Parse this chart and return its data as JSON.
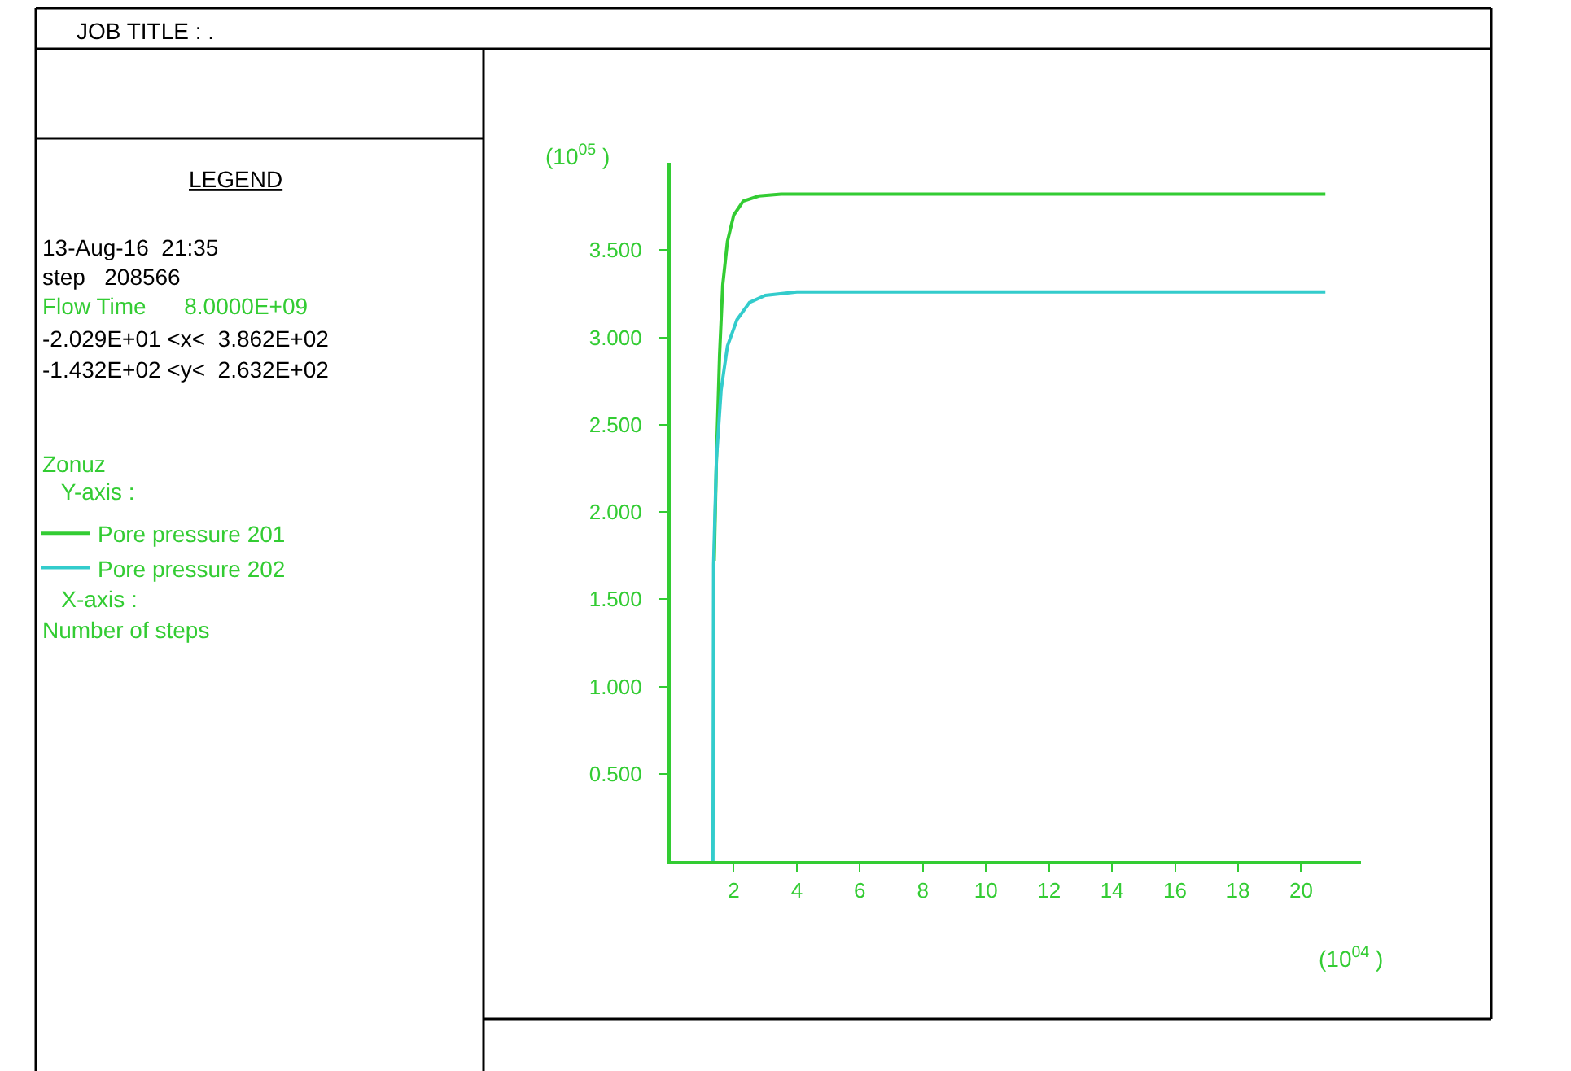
{
  "chart_data": {
    "type": "line",
    "title": "JOB TITLE : .",
    "xlabel": "(10$^{04}$ )",
    "ylabel": "(10$^{05}$ )",
    "annotations": [
      "LEGEND",
      "13-Aug-16  21:35",
      "step   208566",
      "Flow Time      8.0000E+09",
      "-2.029E+01 <x<  3.862E+02",
      "-1.432E+02 <y<  2.632E+02",
      "Zonuz",
      "   Y-axis :",
      "   X-axis :",
      "Number of steps"
    ],
    "series": [
      {
        "name": "Pore pressure 201",
        "color": "#33cc33",
        "x": [
          1.38,
          1.45,
          1.55,
          1.65,
          1.8,
          2.0,
          2.3,
          2.8,
          3.5,
          20.77
        ],
        "values": [
          1.72,
          2.3,
          2.9,
          3.3,
          3.55,
          3.7,
          3.78,
          3.81,
          3.82,
          3.82
        ]
      },
      {
        "name": "Pore pressure 202",
        "color": "#33cccc",
        "x": [
          1.34,
          1.36,
          1.45,
          1.6,
          1.8,
          2.1,
          2.5,
          3.0,
          4.0,
          20.77
        ],
        "values": [
          0,
          1.7,
          2.3,
          2.7,
          2.95,
          3.1,
          3.2,
          3.24,
          3.26,
          3.26
        ]
      }
    ],
    "xlim": [
      0,
      21.9
    ],
    "ylim": [
      0,
      4.0
    ],
    "xticks": [
      2,
      4,
      6,
      8,
      10,
      12,
      14,
      16,
      18,
      20
    ],
    "yticks": [
      {
        "value": 0.5,
        "label": "0.500"
      },
      {
        "value": 1.0,
        "label": "1.000"
      },
      {
        "value": 1.5,
        "label": "1.500"
      },
      {
        "value": 2.0,
        "label": "2.000"
      },
      {
        "value": 2.5,
        "label": "2.500"
      },
      {
        "value": 3.0,
        "label": "3.000"
      },
      {
        "value": 3.5,
        "label": "3.500"
      }
    ],
    "legend": "left",
    "marker": "none",
    "line_style": "solid"
  }
}
